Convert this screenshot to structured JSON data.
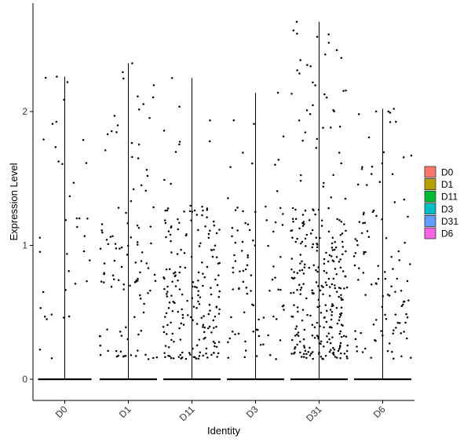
{
  "chart_data": {
    "type": "violin-jitter",
    "xlabel": "Identity",
    "ylabel": "Expression Level",
    "ylim": [
      -0.15,
      2.8
    ],
    "yticks": [
      0,
      1,
      2
    ],
    "categories": [
      "D0",
      "D1",
      "D11",
      "D3",
      "D31",
      "D6"
    ],
    "legend": {
      "placement": "right",
      "items": [
        {
          "label": "D0",
          "color": "#F8766D"
        },
        {
          "label": "D1",
          "color": "#B79F00"
        },
        {
          "label": "D11",
          "color": "#00BA38"
        },
        {
          "label": "D3",
          "color": "#00BFC4"
        },
        {
          "label": "D31",
          "color": "#619CFF"
        },
        {
          "label": "D6",
          "color": "#F564E3"
        }
      ]
    },
    "series": [
      {
        "category": "D0",
        "max": 2.26,
        "n_points": 38,
        "spread": 0.42,
        "hi_fraction": 0.55,
        "seed": 11
      },
      {
        "category": "D1",
        "max": 2.36,
        "n_points": 110,
        "spread": 0.45,
        "hi_fraction": 0.45,
        "seed": 23
      },
      {
        "category": "D11",
        "max": 2.25,
        "n_points": 200,
        "spread": 0.45,
        "hi_fraction": 0.12,
        "seed": 37
      },
      {
        "category": "D3",
        "max": 2.14,
        "n_points": 90,
        "spread": 0.45,
        "hi_fraction": 0.3,
        "seed": 41
      },
      {
        "category": "D31",
        "max": 2.67,
        "n_points": 300,
        "spread": 0.45,
        "hi_fraction": 0.25,
        "seed": 53
      },
      {
        "category": "D6",
        "max": 2.02,
        "n_points": 110,
        "spread": 0.45,
        "hi_fraction": 0.35,
        "seed": 67
      }
    ]
  }
}
